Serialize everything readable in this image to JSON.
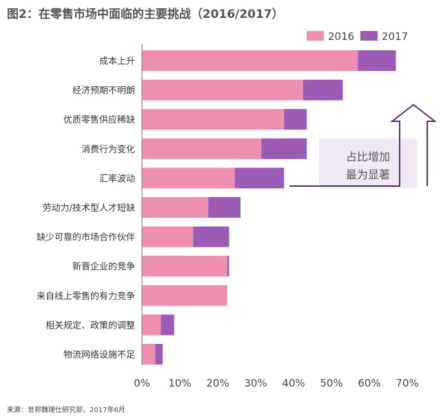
{
  "title": "图2：在零售市场中面临的主要挑战（2016/2017）",
  "source": "来源：世邦魏理仕研究部，2017年6月",
  "callout": {
    "line1": "占比增加",
    "line2": "最为显著"
  },
  "colors": {
    "s2016": "#ee8fb2",
    "s2017": "#9c5bb4",
    "callout_bg": "#f1e8f6",
    "callout_border": "#5a2a7a"
  },
  "chart_data": {
    "type": "bar",
    "orientation": "horizontal",
    "stacked": true,
    "categories": [
      "成本上升",
      "经济预期不明朗",
      "优质零售供应稀缺",
      "消费行为变化",
      "汇率波动",
      "劳动力/技术型人才短缺",
      "缺少可靠的市场合作伙伴",
      "新晋企业的竞争",
      "来自线上零售的有力竞争",
      "相关规定、政策的调整",
      "物流网络设施不足"
    ],
    "series": [
      {
        "name": "2016",
        "values": [
          57,
          42.5,
          37.5,
          31.5,
          24.5,
          17.5,
          13.5,
          22.5,
          22.5,
          5,
          3.5
        ]
      },
      {
        "name": "2017",
        "values": [
          10,
          10.5,
          6,
          12,
          13,
          8.5,
          9.5,
          0.5,
          0,
          3.5,
          2
        ]
      }
    ],
    "xticks": [
      "0%",
      "10%",
      "20%",
      "30%",
      "40%",
      "50%",
      "60%",
      "70%"
    ],
    "xlim": [
      0,
      70
    ],
    "legend": "top-right",
    "grid": false
  }
}
